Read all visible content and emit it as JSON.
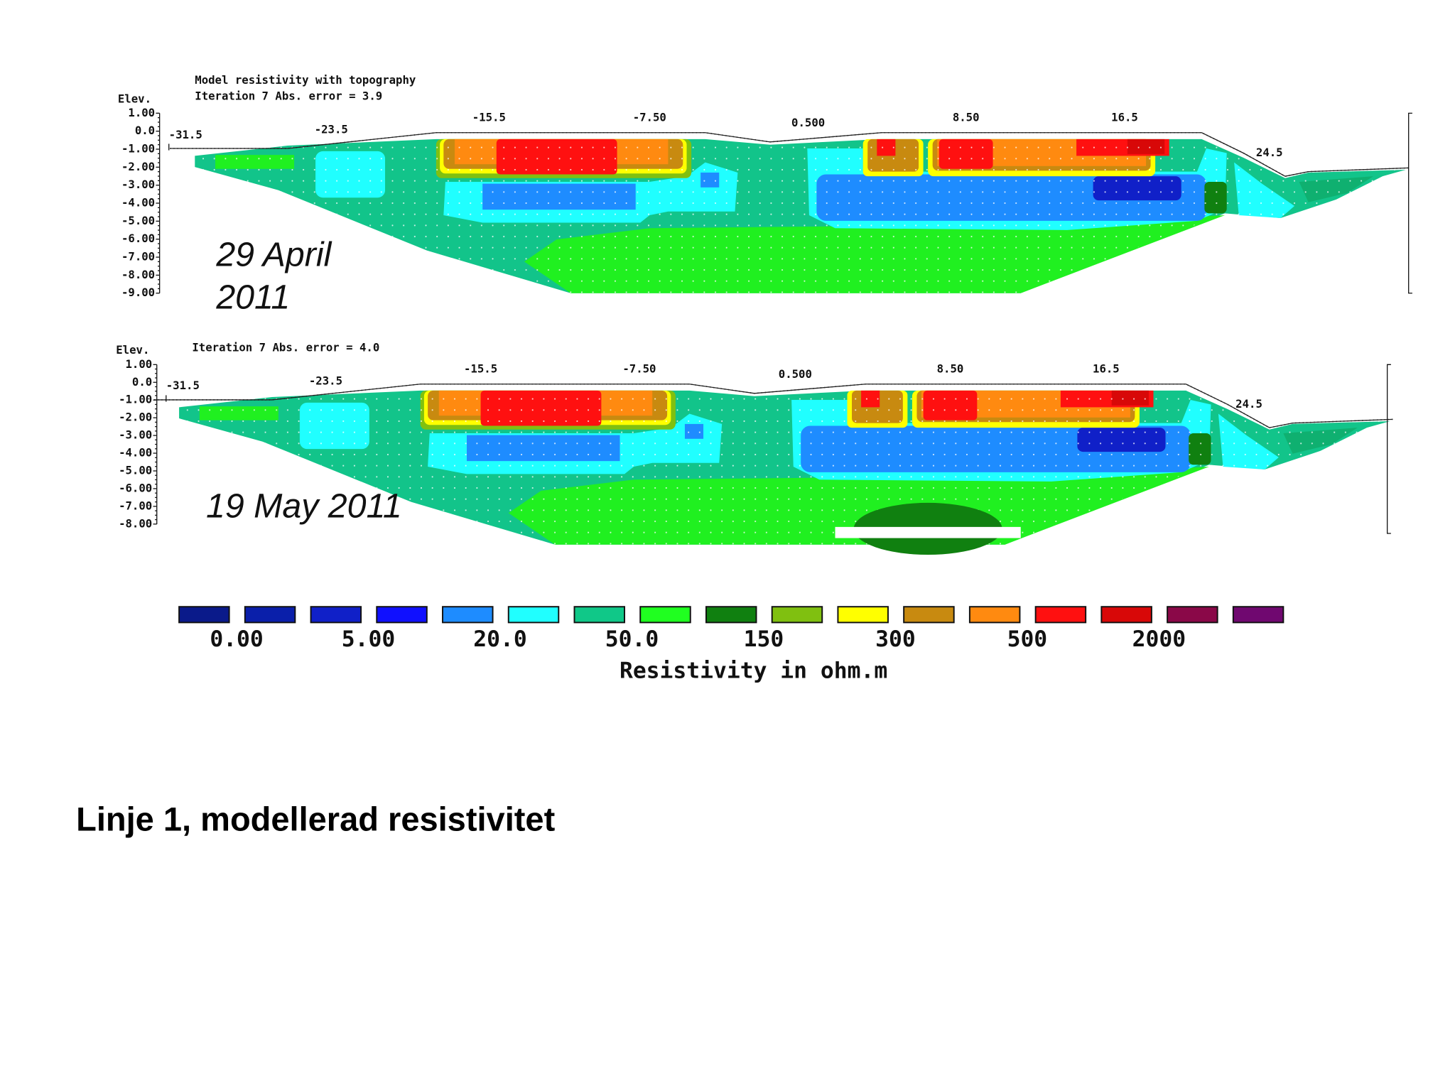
{
  "panels": [
    {
      "title": "Model resistivity with topography",
      "subtitle": "Iteration 7 Abs. error = 3.9",
      "y_axis_label": "Elev.",
      "y_tick_labels": [
        "1.00",
        "0.0",
        "-1.00",
        "-2.00",
        "-3.00",
        "-4.00",
        "-5.00",
        "-6.00",
        "-7.00",
        "-8.00",
        "-9.00"
      ],
      "x_tick_labels": [
        "-31.5",
        "-23.5",
        "-15.5",
        "-7.50",
        "0.500",
        "8.50",
        "16.5",
        "24.5"
      ],
      "date_lines": [
        "29 April",
        "2011"
      ]
    },
    {
      "subtitle": "Iteration 7 Abs. error = 4.0",
      "y_axis_label": "Elev.",
      "y_tick_labels": [
        "1.00",
        "0.0",
        "-1.00",
        "-2.00",
        "-3.00",
        "-4.00",
        "-5.00",
        "-6.00",
        "-7.00",
        "-8.00"
      ],
      "x_tick_labels": [
        "-31.5",
        "-23.5",
        "-15.5",
        "-7.50",
        "0.500",
        "8.50",
        "16.5",
        "24.5"
      ],
      "date_lines": [
        "19 May 2011"
      ]
    }
  ],
  "legend": {
    "labels": [
      "0.00",
      "5.00",
      "20.0",
      "50.0",
      "150",
      "300",
      "500",
      "2000"
    ],
    "title": "Resistivity in ohm.m"
  },
  "caption": "Linje 1, modellerad resistivitet"
}
